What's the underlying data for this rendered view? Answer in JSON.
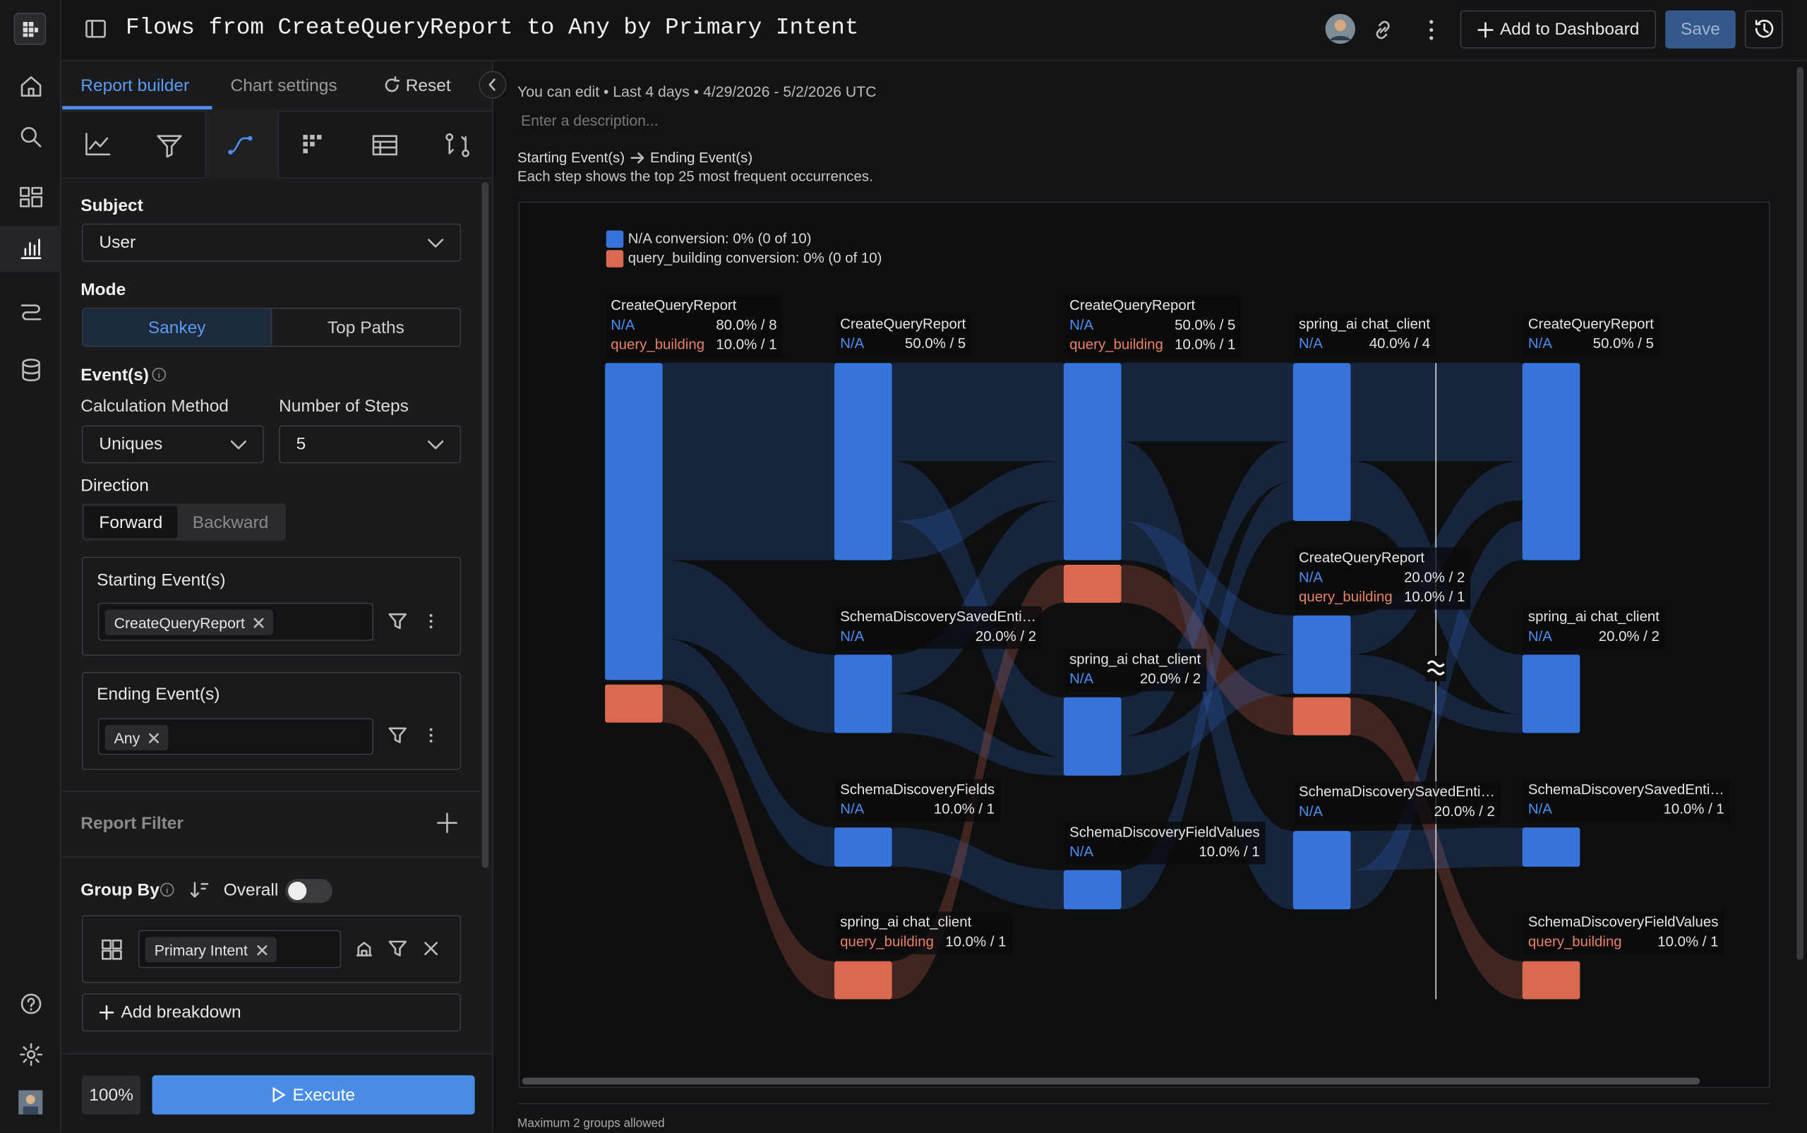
{
  "header": {
    "title": "Flows from CreateQueryReport to Any by Primary Intent",
    "add_to_dashboard": "Add to Dashboard",
    "save": "Save"
  },
  "panel": {
    "tabs": [
      "Report builder",
      "Chart settings",
      "Reset"
    ],
    "subject_label": "Subject",
    "subject": "User",
    "mode_label": "Mode",
    "modes": [
      "Sankey",
      "Top Paths"
    ],
    "events_label": "Event(s)",
    "calc_label": "Calculation Method",
    "calc": "Uniques",
    "steps_label": "Number of Steps",
    "steps": "5",
    "direction_label": "Direction",
    "directions": [
      "Forward",
      "Backward"
    ],
    "starting_label": "Starting Event(s)",
    "starting_chip": "CreateQueryReport",
    "ending_label": "Ending Event(s)",
    "ending_chip": "Any",
    "report_filter": "Report Filter",
    "group_by": "Group By",
    "overall": "Overall",
    "group_chip": "Primary Intent",
    "add_breakdown": "Add breakdown",
    "zoom": "100%",
    "execute": "Execute"
  },
  "report": {
    "meta": "You can edit • Last 4 days • 4/29/2026 - 5/2/2026 UTC",
    "description_placeholder": "Enter a description...",
    "from": "Starting Event(s)",
    "to": "Ending Event(s)",
    "note": "Each step shows the top 25 most frequent occurrences.",
    "legend": [
      "N/A conversion: 0% (0 of 10)",
      "query_building conversion: 0% (0 of 10)"
    ],
    "nodes": [
      {
        "label": "CreateQueryReport",
        "rows": [
          {
            "group": "N/A",
            "stat": "80.0% / 8"
          },
          {
            "group": "query_building",
            "stat": "10.0% / 1"
          }
        ]
      },
      {
        "label": "CreateQueryReport",
        "rows": [
          {
            "group": "N/A",
            "stat": "50.0% / 5"
          }
        ]
      },
      {
        "label": "SchemaDiscoverySavedEnti…",
        "rows": [
          {
            "group": "N/A",
            "stat": "20.0% / 2"
          }
        ]
      },
      {
        "label": "SchemaDiscoveryFields",
        "rows": [
          {
            "group": "N/A",
            "stat": "10.0% / 1"
          }
        ]
      },
      {
        "label": "spring_ai chat_client",
        "rows": [
          {
            "group": "query_building",
            "stat": "10.0% / 1"
          }
        ]
      },
      {
        "label": "CreateQueryReport",
        "rows": [
          {
            "group": "N/A",
            "stat": "50.0% / 5"
          },
          {
            "group": "query_building",
            "stat": "10.0% / 1"
          }
        ]
      },
      {
        "label": "spring_ai chat_client",
        "rows": [
          {
            "group": "N/A",
            "stat": "20.0% / 2"
          }
        ]
      },
      {
        "label": "SchemaDiscoveryFieldValues",
        "rows": [
          {
            "group": "N/A",
            "stat": "10.0% / 1"
          }
        ]
      },
      {
        "label": "spring_ai chat_client",
        "rows": [
          {
            "group": "N/A",
            "stat": "40.0% / 4"
          }
        ]
      },
      {
        "label": "CreateQueryReport",
        "rows": [
          {
            "group": "N/A",
            "stat": "20.0% / 2"
          },
          {
            "group": "query_building",
            "stat": "10.0% / 1"
          }
        ]
      },
      {
        "label": "SchemaDiscoverySavedEnti…",
        "rows": [
          {
            "group": "N/A",
            "stat": "20.0% / 2"
          }
        ]
      },
      {
        "label": "CreateQueryReport",
        "rows": [
          {
            "group": "N/A",
            "stat": "50.0% / 5"
          }
        ]
      },
      {
        "label": "spring_ai chat_client",
        "rows": [
          {
            "group": "N/A",
            "stat": "20.0% / 2"
          }
        ]
      },
      {
        "label": "SchemaDiscoverySavedEnti…",
        "rows": [
          {
            "group": "N/A",
            "stat": "10.0% / 1"
          }
        ]
      },
      {
        "label": "SchemaDiscoveryFieldValues",
        "rows": [
          {
            "group": "query_building",
            "stat": "10.0% / 1"
          }
        ]
      }
    ],
    "footer": "Maximum 2 groups allowed"
  }
}
